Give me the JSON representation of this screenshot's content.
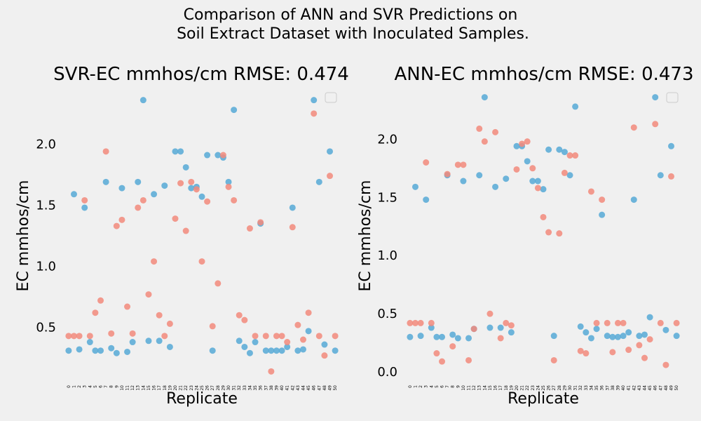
{
  "figure": {
    "suptitle_line1": "Comparison of ANN and SVR Predictions on",
    "suptitle_line2": " Soil Extract Dataset with Inoculated Samples.",
    "colors": {
      "background": "#f0f0f0",
      "series_blue": "#56a9d6",
      "series_red": "#f28a7b",
      "legend_border": "#cccccc"
    }
  },
  "chart_data": [
    {
      "type": "scatter",
      "title": "SVR-EC mmhos/cm RMSE: 0.474",
      "xlabel": "Replicate",
      "ylabel": "EC mmhos/cm",
      "x": [
        0,
        1,
        2,
        3,
        4,
        5,
        6,
        7,
        8,
        9,
        10,
        11,
        12,
        13,
        14,
        15,
        16,
        17,
        18,
        19,
        20,
        21,
        22,
        23,
        24,
        25,
        26,
        27,
        28,
        29,
        30,
        31,
        32,
        33,
        34,
        35,
        36,
        37,
        38,
        39,
        40,
        41,
        42,
        43,
        44,
        45,
        46,
        47,
        48,
        49,
        50
      ],
      "x_tick_labels": [
        "0",
        "1",
        "2",
        "3",
        "4",
        "5",
        "6",
        "7",
        "8",
        "9",
        "10",
        "11",
        "12",
        "13",
        "14",
        "15",
        "16",
        "17",
        "18",
        "19",
        "20",
        "21",
        "22",
        "23",
        "24",
        "25",
        "26",
        "27",
        "28",
        "29",
        "30",
        "31",
        "32",
        "33",
        "34",
        "35",
        "36",
        "37",
        "38",
        "39",
        "40",
        "41",
        "42",
        "43",
        "44",
        "45",
        "46",
        "47",
        "48",
        "49",
        "50"
      ],
      "xlim": [
        -1.3,
        51.3
      ],
      "ylim": [
        0.05,
        2.45
      ],
      "y_ticks": [
        0.5,
        1.0,
        1.5,
        2.0
      ],
      "y_tick_labels": [
        "0.5",
        "1.0",
        "1.5",
        "2.0"
      ],
      "grid": false,
      "legend": "top-right (empty)",
      "series": [
        {
          "color": "#56a9d6",
          "values": [
            0.31,
            1.59,
            0.32,
            1.48,
            0.38,
            0.31,
            0.31,
            1.69,
            0.33,
            0.29,
            1.64,
            0.3,
            0.38,
            1.69,
            2.36,
            0.39,
            1.59,
            0.39,
            1.66,
            0.34,
            1.94,
            1.94,
            1.81,
            1.64,
            1.65,
            1.57,
            1.91,
            0.31,
            1.91,
            1.89,
            1.69,
            2.28,
            0.39,
            0.34,
            0.29,
            0.38,
            1.35,
            0.31,
            0.31,
            0.31,
            0.31,
            0.34,
            1.48,
            0.31,
            0.32,
            0.47,
            2.36,
            1.69,
            0.36,
            1.94,
            0.31
          ]
        },
        {
          "color": "#f28a7b",
          "values": [
            0.43,
            0.43,
            0.43,
            1.54,
            0.43,
            0.62,
            0.72,
            1.94,
            0.45,
            1.33,
            1.38,
            0.67,
            0.45,
            1.48,
            1.54,
            0.77,
            1.04,
            0.6,
            0.43,
            0.53,
            1.39,
            1.68,
            1.29,
            1.69,
            1.63,
            1.04,
            1.53,
            0.51,
            0.86,
            1.91,
            1.65,
            1.54,
            0.6,
            0.56,
            1.31,
            0.43,
            1.36,
            0.43,
            0.14,
            0.43,
            0.43,
            0.38,
            1.32,
            0.52,
            0.4,
            0.62,
            2.25,
            0.43,
            0.27,
            1.74,
            0.43
          ]
        }
      ]
    },
    {
      "type": "scatter",
      "title": "ANN-EC mmhos/cm RMSE: 0.473",
      "xlabel": "Replicate",
      "ylabel": "EC mmhos/cm",
      "x": [
        0,
        1,
        2,
        3,
        4,
        5,
        6,
        7,
        8,
        9,
        10,
        11,
        12,
        13,
        14,
        15,
        16,
        17,
        18,
        19,
        20,
        21,
        22,
        23,
        24,
        25,
        26,
        27,
        28,
        29,
        30,
        31,
        32,
        33,
        34,
        35,
        36,
        37,
        38,
        39,
        40,
        41,
        42,
        43,
        44,
        45,
        46,
        47,
        48,
        49,
        50
      ],
      "x_tick_labels": [
        "0",
        "1",
        "2",
        "3",
        "4",
        "5",
        "6",
        "7",
        "8",
        "9",
        "10",
        "11",
        "12",
        "13",
        "14",
        "15",
        "16",
        "17",
        "18",
        "19",
        "20",
        "21",
        "22",
        "23",
        "24",
        "25",
        "26",
        "27",
        "28",
        "29",
        "30",
        "31",
        "32",
        "33",
        "34",
        "35",
        "36",
        "37",
        "38",
        "39",
        "40",
        "41",
        "42",
        "43",
        "44",
        "45",
        "46",
        "47",
        "48",
        "49",
        "50"
      ],
      "xlim": [
        -1.3,
        51.3
      ],
      "ylim": [
        -0.09,
        2.43
      ],
      "y_ticks": [
        0.0,
        0.5,
        1.0,
        1.5,
        2.0
      ],
      "y_tick_labels": [
        "0.0",
        "0.5",
        "1.0",
        "1.5",
        "2.0"
      ],
      "grid": false,
      "legend": "top-right (empty)",
      "series": [
        {
          "color": "#56a9d6",
          "values": [
            0.3,
            1.59,
            0.31,
            1.48,
            0.38,
            0.3,
            0.3,
            1.69,
            0.32,
            0.29,
            1.64,
            0.29,
            0.37,
            1.69,
            2.36,
            0.38,
            1.59,
            0.38,
            1.66,
            0.34,
            1.94,
            1.94,
            1.81,
            1.64,
            1.64,
            1.57,
            1.91,
            0.31,
            1.91,
            1.89,
            1.69,
            2.28,
            0.39,
            0.34,
            0.29,
            0.37,
            1.35,
            0.31,
            0.3,
            0.3,
            0.31,
            0.34,
            1.48,
            0.31,
            0.32,
            0.47,
            2.36,
            1.69,
            0.36,
            1.94,
            0.31
          ]
        },
        {
          "color": "#f28a7b",
          "values": [
            0.42,
            0.42,
            0.42,
            1.8,
            0.42,
            0.16,
            0.09,
            1.7,
            0.22,
            1.78,
            1.78,
            0.1,
            0.37,
            2.09,
            1.98,
            0.5,
            2.06,
            0.29,
            0.42,
            0.4,
            1.74,
            1.96,
            1.98,
            1.75,
            1.58,
            1.33,
            1.2,
            0.1,
            1.19,
            1.71,
            1.86,
            1.86,
            0.18,
            0.16,
            1.55,
            0.42,
            1.48,
            0.42,
            0.17,
            0.42,
            0.42,
            0.19,
            2.1,
            0.23,
            0.12,
            0.28,
            2.13,
            0.42,
            0.06,
            1.68,
            0.42
          ]
        }
      ]
    }
  ]
}
